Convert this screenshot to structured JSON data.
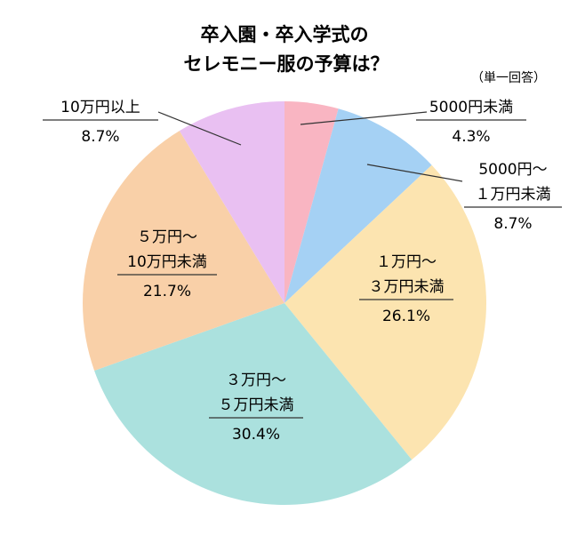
{
  "chart_data": {
    "type": "pie",
    "title": [
      "卒入園・卒入学式の",
      "セレモニー服の予算は？"
    ],
    "note": "（単一回答）",
    "slices": [
      {
        "label": "5000円未満",
        "value": 4.3,
        "value_label": "4.3%",
        "color": "#f9b5c2"
      },
      {
        "label": "5000円〜１万円未満",
        "value": 8.7,
        "value_label": "8.7%",
        "color": "#a5d1f4"
      },
      {
        "label": "１万円〜３万円未満",
        "value": 26.1,
        "value_label": "26.1%",
        "color": "#fce4b0"
      },
      {
        "label": "３万円〜５万円未満",
        "value": 30.4,
        "value_label": "30.4%",
        "color": "#abe1de"
      },
      {
        "label": "５万円〜10万円未満",
        "value": 21.7,
        "value_label": "21.7%",
        "color": "#f9d0a8"
      },
      {
        "label": "10万円以上",
        "value": 8.7,
        "value_label": "8.7%",
        "color": "#e9c0f2"
      }
    ],
    "label_lines": [
      [
        "5000円未満"
      ],
      [
        "5000円〜",
        "１万円未満"
      ],
      [
        "１万円〜",
        "３万円未満"
      ],
      [
        "３万円〜",
        "５万円未満"
      ],
      [
        "５万円〜",
        "10万円未満"
      ],
      [
        "10万円以上"
      ]
    ]
  }
}
